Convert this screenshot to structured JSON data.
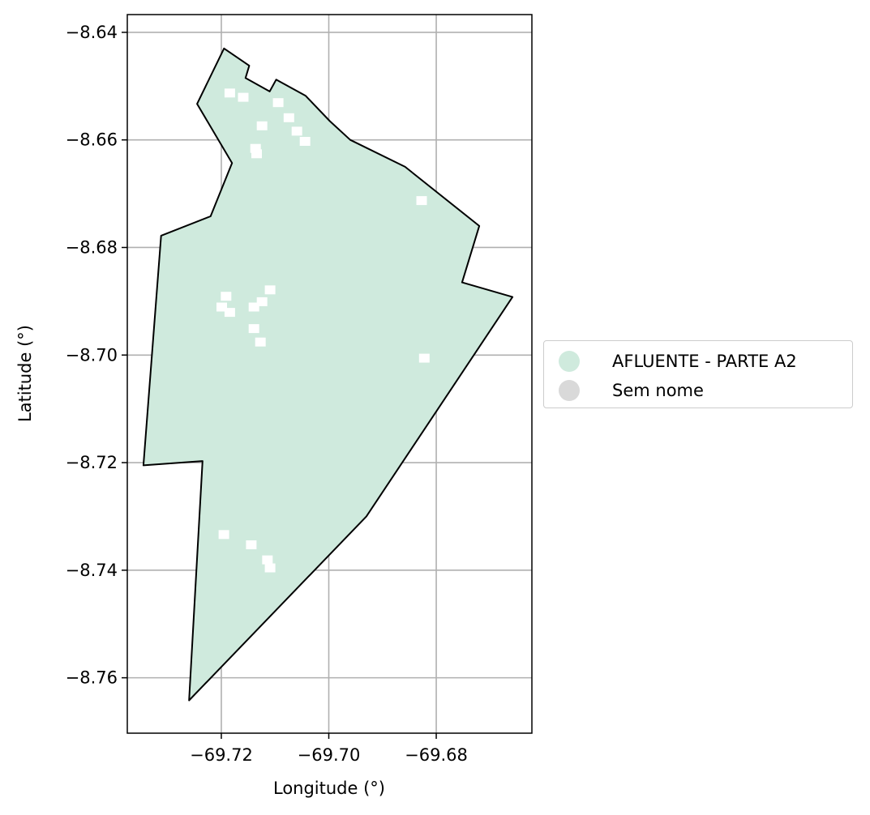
{
  "chart_data": {
    "type": "map",
    "xlabel": "Longitude (°)",
    "ylabel": "Latitude (°)",
    "xlim": [
      -69.7375,
      -69.6622
    ],
    "ylim": [
      -8.7703,
      -8.6367
    ],
    "x_ticks": [
      {
        "value": -69.72,
        "label": "−69.72"
      },
      {
        "value": -69.7,
        "label": "−69.70"
      },
      {
        "value": -69.68,
        "label": "−69.68"
      }
    ],
    "y_ticks": [
      {
        "value": -8.64,
        "label": "−8.64"
      },
      {
        "value": -8.66,
        "label": "−8.66"
      },
      {
        "value": -8.68,
        "label": "−8.68"
      },
      {
        "value": -8.7,
        "label": "−8.70"
      },
      {
        "value": -8.72,
        "label": "−8.72"
      },
      {
        "value": -8.74,
        "label": "−8.74"
      },
      {
        "value": -8.76,
        "label": "−8.76"
      }
    ],
    "grid": true,
    "legend_placement": "right",
    "legend": [
      {
        "label": "AFLUENTE - PARTE A2",
        "color": "#cfeadd"
      },
      {
        "label": "Sem nome",
        "color": "#d9d9d9"
      }
    ],
    "polygon": {
      "fill": "#cfeadd",
      "edge": "#000000",
      "coords": [
        [
          -69.7195,
          -8.643
        ],
        [
          -69.7148,
          -8.6462
        ],
        [
          -69.7155,
          -8.6485
        ],
        [
          -69.711,
          -8.651
        ],
        [
          -69.7098,
          -8.6488
        ],
        [
          -69.7043,
          -8.6518
        ],
        [
          -69.6998,
          -8.6565
        ],
        [
          -69.696,
          -8.66
        ],
        [
          -69.6858,
          -8.665
        ],
        [
          -69.672,
          -8.676
        ],
        [
          -69.6752,
          -8.6865
        ],
        [
          -69.6658,
          -8.6892
        ],
        [
          -69.693,
          -8.73
        ],
        [
          -69.726,
          -8.7642
        ],
        [
          -69.7235,
          -8.7197
        ],
        [
          -69.7345,
          -8.7205
        ],
        [
          -69.7312,
          -8.6778
        ],
        [
          -69.722,
          -8.6742
        ],
        [
          -69.718,
          -8.6643
        ],
        [
          -69.7245,
          -8.6533
        ]
      ]
    },
    "holes": [
      [
        -69.7185,
        -8.6512
      ],
      [
        -69.716,
        -8.652
      ],
      [
        -69.7095,
        -8.653
      ],
      [
        -69.7075,
        -8.6558
      ],
      [
        -69.7125,
        -8.6573
      ],
      [
        -69.706,
        -8.6583
      ],
      [
        -69.7045,
        -8.6602
      ],
      [
        -69.7137,
        -8.6615
      ],
      [
        -69.7135,
        -8.6625
      ],
      [
        -69.6828,
        -8.6712
      ],
      [
        -69.7192,
        -8.689
      ],
      [
        -69.72,
        -8.691
      ],
      [
        -69.7185,
        -8.692
      ],
      [
        -69.711,
        -8.6878
      ],
      [
        -69.7125,
        -8.69
      ],
      [
        -69.714,
        -8.691
      ],
      [
        -69.714,
        -8.695
      ],
      [
        -69.7128,
        -8.6975
      ],
      [
        -69.6823,
        -8.7005
      ],
      [
        -69.7196,
        -8.7333
      ],
      [
        -69.7145,
        -8.7352
      ],
      [
        -69.7115,
        -8.738
      ],
      [
        -69.711,
        -8.7395
      ]
    ]
  }
}
